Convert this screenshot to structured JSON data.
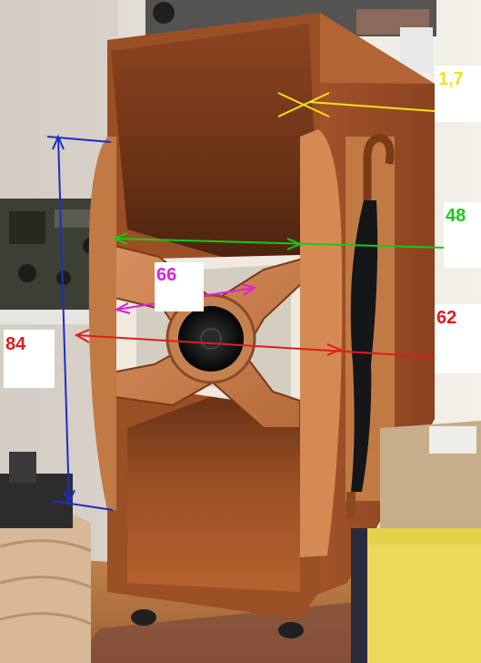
{
  "colors": {
    "wall": "#e7e3dc",
    "wood_dark": "#7a3d1c",
    "wood_mid": "#a8582a",
    "wood_light": "#c97c45",
    "floor": "#b9763f",
    "blue": "#1b2fc4",
    "green": "#18c818",
    "red": "#e01c1c",
    "magenta": "#e020d8",
    "yellow": "#f2e21a"
  },
  "measurements": {
    "top_thickness": "1,7",
    "width": "48",
    "throat_width": "66",
    "depth": "62",
    "height": "84"
  }
}
